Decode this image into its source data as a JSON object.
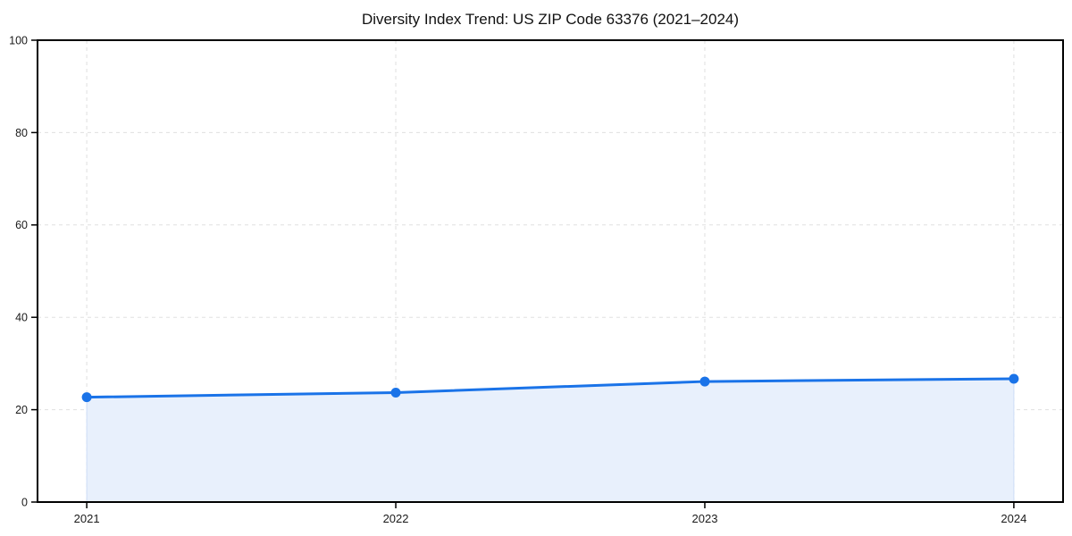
{
  "chart_data": {
    "type": "area",
    "title": "Diversity Index Trend: US ZIP Code 63376 (2021–2024)",
    "x": [
      2021,
      2022,
      2023,
      2024
    ],
    "series": [
      {
        "name": "Diversity Index",
        "values": [
          22.7,
          23.7,
          26.1,
          26.7
        ]
      }
    ],
    "xlabel": "",
    "ylabel": "",
    "ylim": [
      0,
      100
    ],
    "yticks": [
      0,
      20,
      40,
      60,
      80,
      100
    ],
    "grid": true,
    "grid_style": "dashed",
    "legend_position": "none",
    "marker": "circle",
    "colors": {
      "line": "#1a73e8",
      "marker": "#1a73e8",
      "area_fill": "#e8f0fc",
      "area_edge": "#cdddf7",
      "grid": "#e0e0e0",
      "axis": "#000000",
      "tick_label": "#1a1a1a",
      "title": "#111111",
      "background": "#ffffff"
    }
  }
}
